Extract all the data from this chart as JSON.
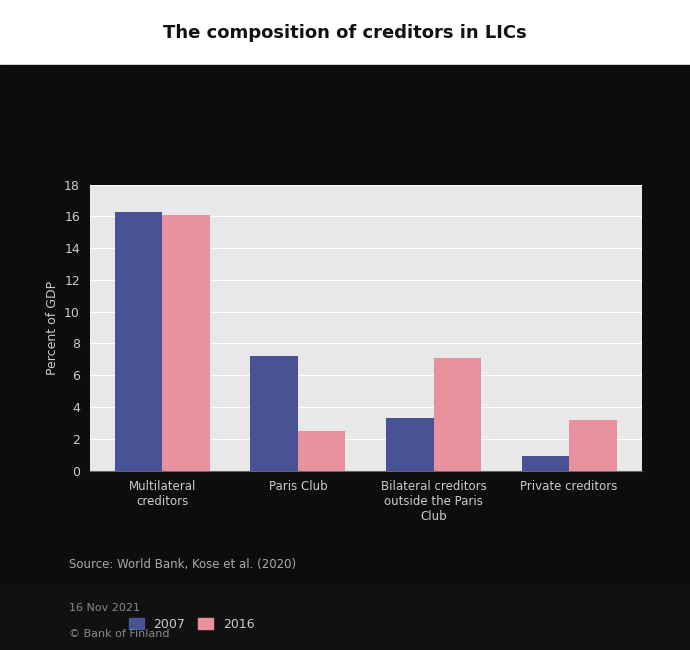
{
  "title": "The composition of creditors in LICs",
  "categories": [
    "Multilateral\ncreditors",
    "Paris Club",
    "Bilateral creditors\noutside the Paris\nClub",
    "Private creditors"
  ],
  "values_2007": [
    16.3,
    7.2,
    3.3,
    0.9
  ],
  "values_2016": [
    16.1,
    2.5,
    7.1,
    3.2
  ],
  "color_2007": "#4a5296",
  "color_2016": "#e8909e",
  "ylabel": "Percent of GDP",
  "ylim": [
    0,
    18
  ],
  "yticks": [
    0,
    2,
    4,
    6,
    8,
    10,
    12,
    14,
    16,
    18
  ],
  "source": "Source: World Bank, Kose et al. (2020)",
  "footer_date": "16 Nov 2021",
  "footer_copy": "© Bank of Finland",
  "legend_labels": [
    "2007",
    "2016"
  ],
  "bar_width": 0.35,
  "outer_bg": "#ffffff",
  "panel_bg": "#0d0d0d",
  "plot_area_bg": "#e8e8e8",
  "grid_color": "#ffffff",
  "tick_label_color": "#cccccc",
  "ylabel_color": "#cccccc",
  "source_color": "#aaaaaa",
  "title_color": "#111111",
  "footer_bg": "#111111",
  "footer_text_color": "#888888"
}
